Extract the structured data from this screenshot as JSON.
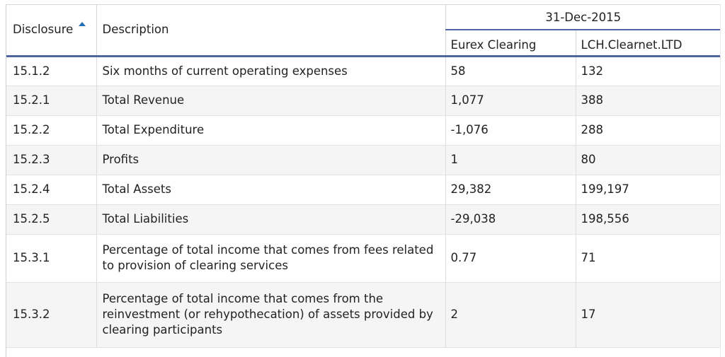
{
  "table": {
    "headers": {
      "disclosure": "Disclosure",
      "description": "Description",
      "date_group": "31-Dec-2015",
      "col_eurex": "Eurex Clearing",
      "col_lch": "LCH.Clearnet.LTD"
    },
    "sort": {
      "column": "Disclosure",
      "direction": "ascending",
      "icon": "sort-ascending-icon"
    },
    "rows": [
      {
        "disclosure": "15.1.2",
        "description": "Six months of current operating expenses",
        "eurex": "58",
        "lch": "132"
      },
      {
        "disclosure": "15.2.1",
        "description": "Total Revenue",
        "eurex": "1,077",
        "lch": "388"
      },
      {
        "disclosure": "15.2.2",
        "description": "Total Expenditure",
        "eurex": "-1,076",
        "lch": "288"
      },
      {
        "disclosure": "15.2.3",
        "description": "Profits",
        "eurex": "1",
        "lch": "80"
      },
      {
        "disclosure": "15.2.4",
        "description": "Total Assets",
        "eurex": "29,382",
        "lch": "199,197"
      },
      {
        "disclosure": "15.2.5",
        "description": "Total Liabilities",
        "eurex": "-29,038",
        "lch": "198,556"
      },
      {
        "disclosure": "15.3.1",
        "description": "Percentage of total income that comes from fees related to provision of clearing services",
        "eurex": "0.77",
        "lch": "71"
      },
      {
        "disclosure": "15.3.2",
        "description": "Percentage of total income that comes from the reinvestment (or rehypothecation) of assets provided by clearing participants",
        "eurex": "2",
        "lch": "17"
      }
    ]
  },
  "colors": {
    "header_rule": "#4e67a4",
    "sort_arrow": "#1f6fb5",
    "row_stripe": "#f5f5f5",
    "grid_line": "#dcdcdc"
  }
}
